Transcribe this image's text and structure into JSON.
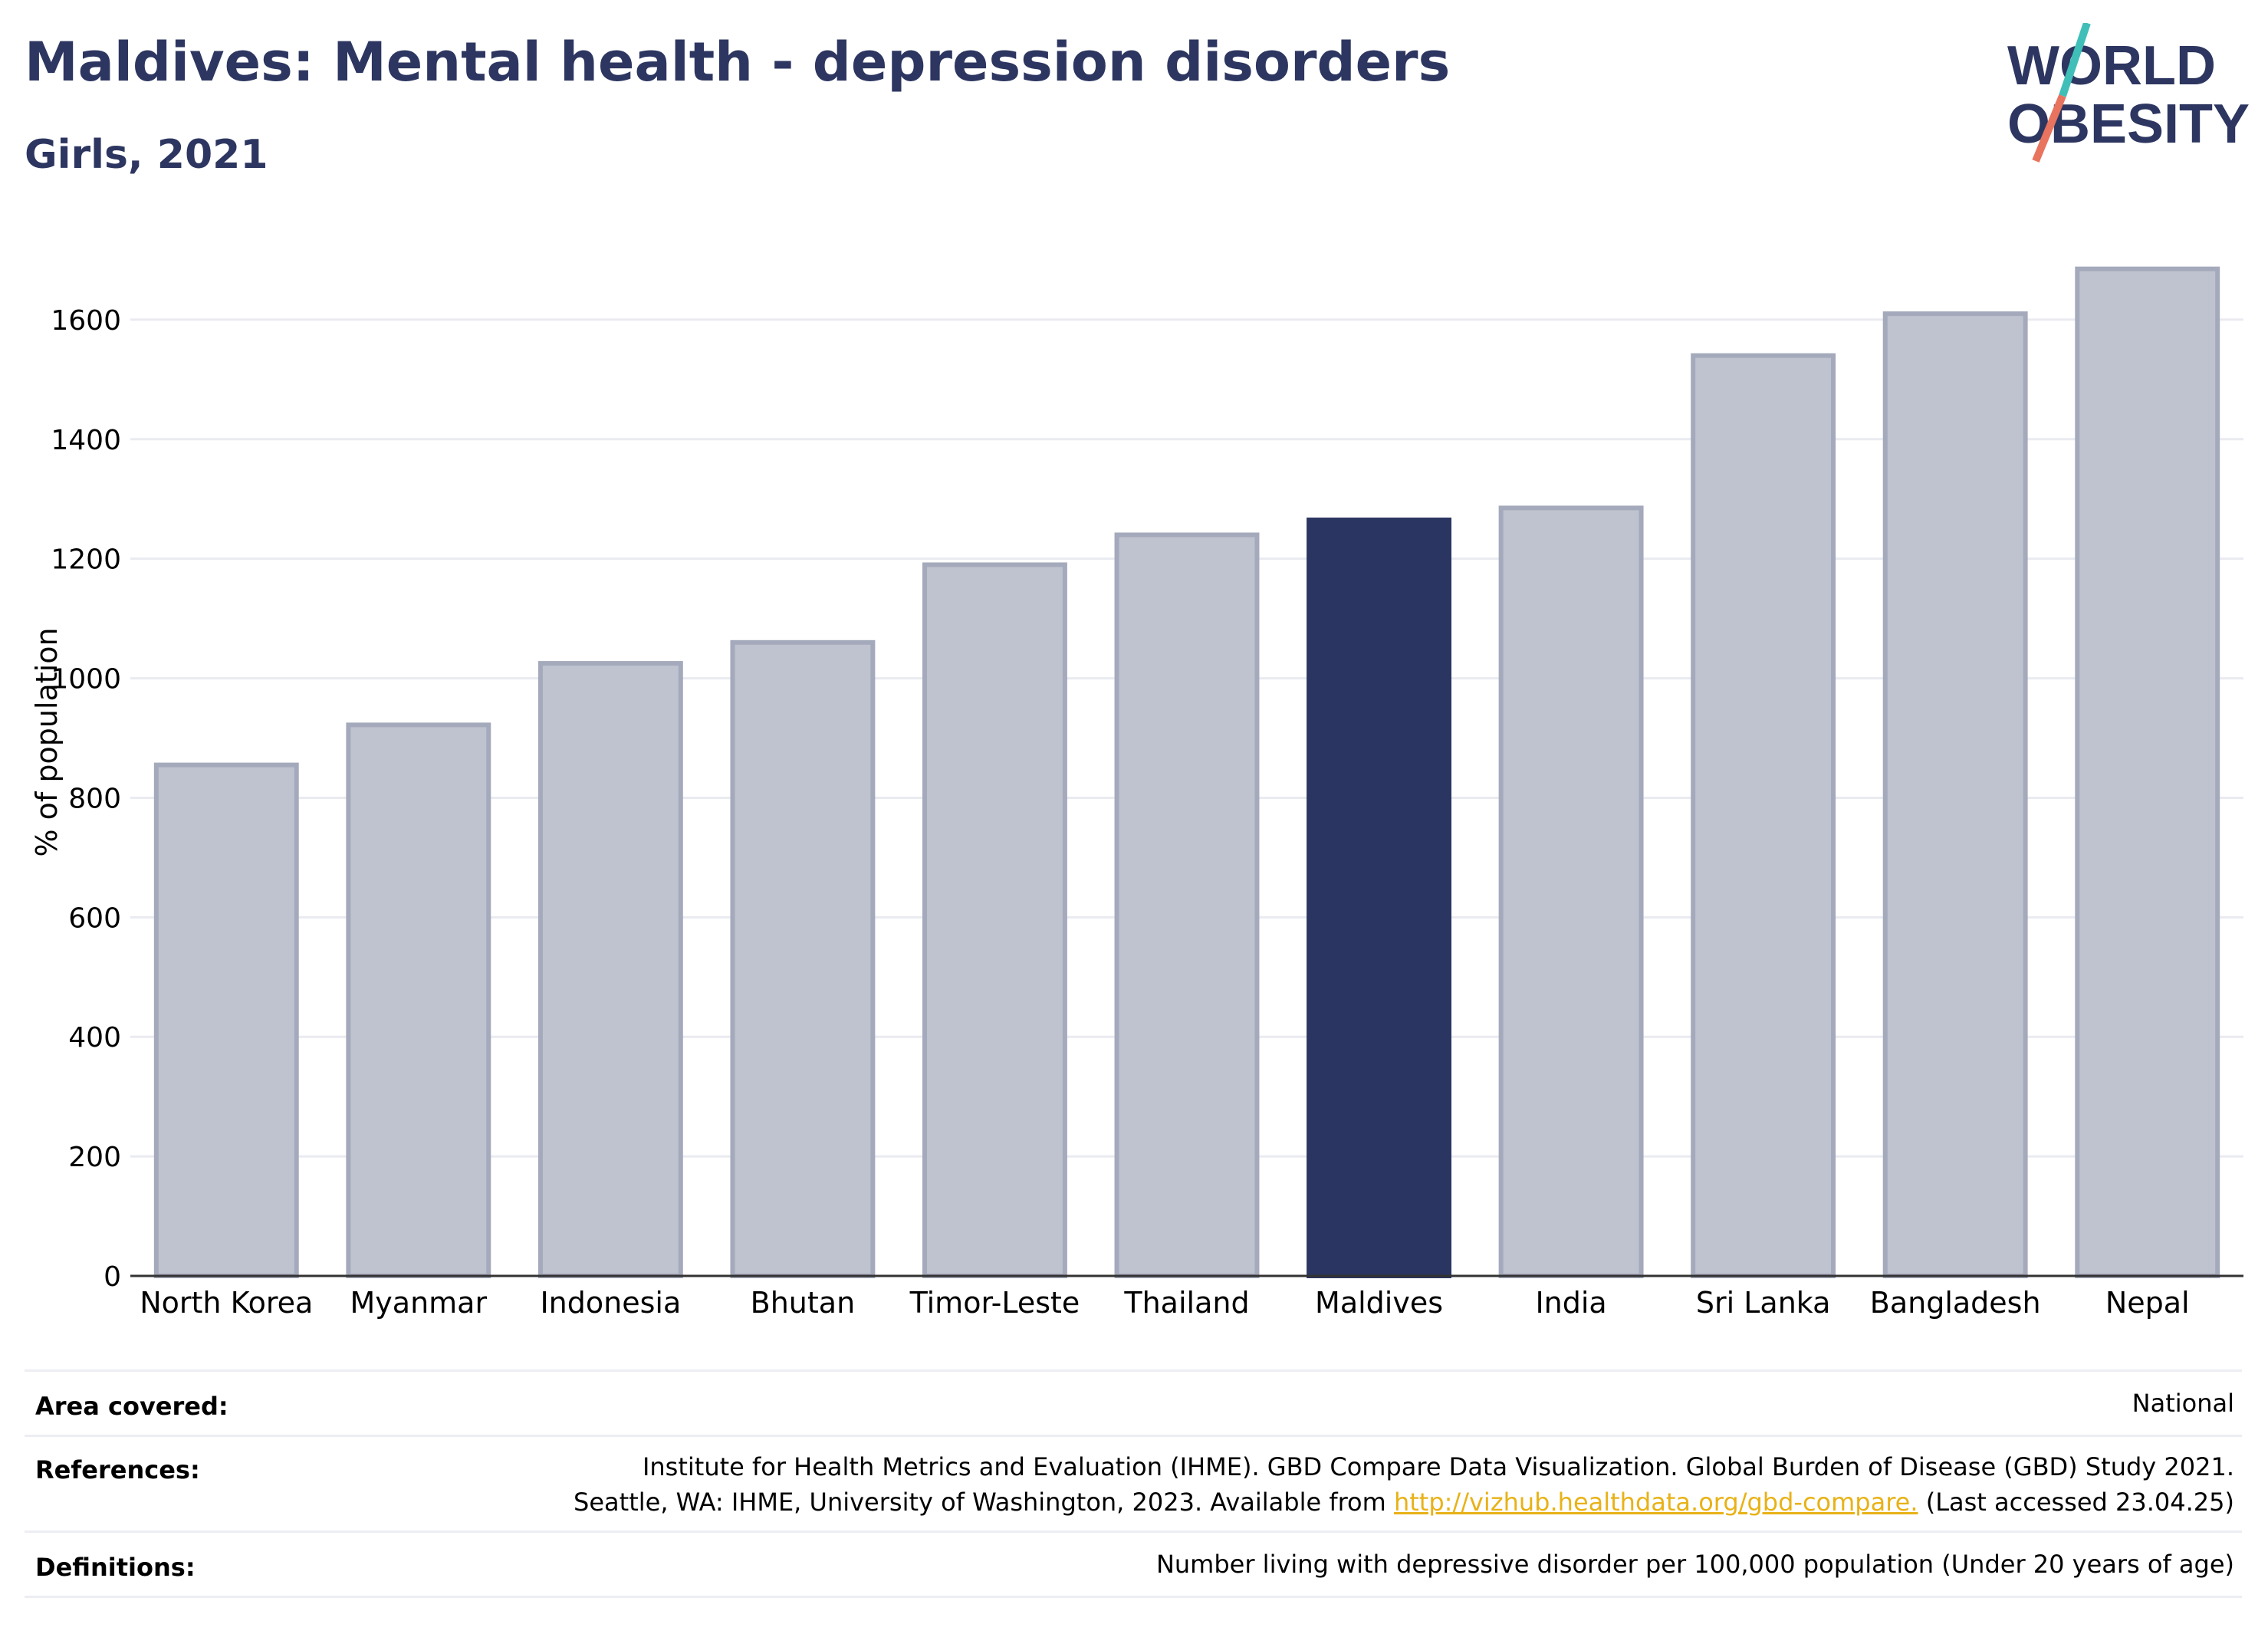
{
  "header": {
    "title": "Maldives: Mental health - depression disorders",
    "subtitle": "Girls, 2021",
    "logo_line1": "WORLD",
    "logo_line2": "OBESITY"
  },
  "colors": {
    "highlight": "#2a3561",
    "bar_fill": "#bfc3cf",
    "bar_stroke": "#a4aabb",
    "text": "#2d3660",
    "link": "#e8b217",
    "logo_teal": "#3fbfb8",
    "logo_red": "#e8735e"
  },
  "chart_data": {
    "type": "bar",
    "ylabel": "% of population",
    "xlabel": "",
    "ylim": [
      0,
      1750
    ],
    "yticks": [
      0,
      200,
      400,
      600,
      800,
      1000,
      1200,
      1400,
      1600
    ],
    "grid": true,
    "categories": [
      "North Korea",
      "Myanmar",
      "Indonesia",
      "Bhutan",
      "Timor-Leste",
      "Thailand",
      "Maldives",
      "India",
      "Sri Lanka",
      "Bangladesh",
      "Nepal"
    ],
    "values": [
      855,
      922,
      1025,
      1060,
      1190,
      1240,
      1265,
      1285,
      1540,
      1610,
      1685
    ],
    "highlight": "Maldives"
  },
  "meta": {
    "area_label": "Area covered:",
    "area_value": "National",
    "references_label": "References:",
    "references_line1": "Institute for Health Metrics and Evaluation (IHME). GBD Compare Data Visualization. Global Burden of Disease (GBD) Study 2021.",
    "references_line2_pre": "Seattle, WA: IHME, University of Washington, 2023. Available from",
    "references_link": "http://vizhub.healthdata.org/gbd-compare.",
    "references_line2_post": "(Last accessed 23.04.25)",
    "definitions_label": "Definitions:",
    "definitions_value": "Number living with depressive disorder per 100,000 population (Under 20 years of age)"
  }
}
